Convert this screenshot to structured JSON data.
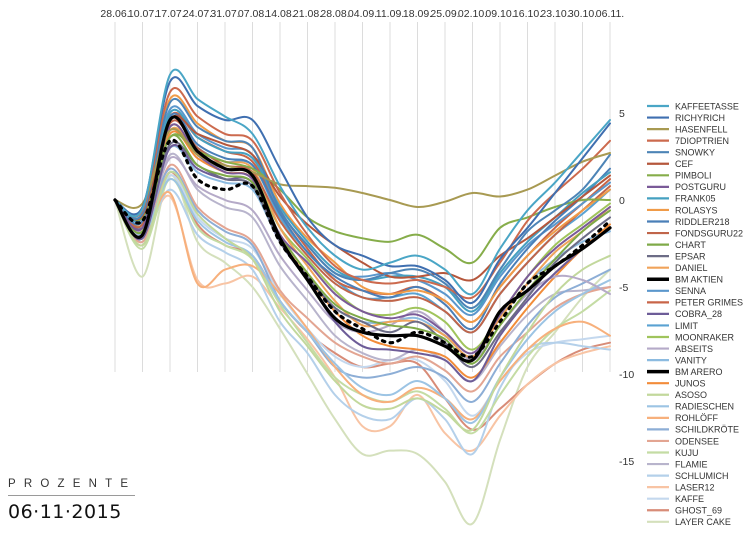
{
  "caption": {
    "title": "PROZENTE",
    "date": "06·11·2015"
  },
  "chart_data": {
    "type": "line",
    "title": "PROZENTE 06·11·2015",
    "xlabel": "",
    "ylabel": "Prozente",
    "ylim": [
      -18.5,
      8.5
    ],
    "yticks": [
      5,
      0,
      -5,
      -10,
      -15
    ],
    "ytick_labels": [
      "5",
      "0",
      "-5",
      "-10",
      "-15"
    ],
    "grid": "vertical",
    "legend_position": "right",
    "smooth": true,
    "x": [
      "28.06.",
      "10.07.",
      "17.07.",
      "24.07.",
      "31.07.",
      "07.08.",
      "14.08.",
      "21.08.",
      "28.08.",
      "04.09.",
      "11.09.",
      "18.09.",
      "25.09.",
      "02.10.",
      "09.10.",
      "16.10.",
      "23.10.",
      "30.10.",
      "06.11."
    ],
    "series": [
      {
        "name": "KAFFEETASSE",
        "color": "#4aa6c6",
        "width": 2,
        "dash": "",
        "values": [
          0,
          -0.5,
          7.2,
          5.8,
          4.8,
          3.8,
          0.8,
          -1.6,
          -3.2,
          -4.0,
          -3.6,
          -3.2,
          -4.0,
          -5.4,
          -2.8,
          -0.6,
          1.0,
          2.8,
          4.6
        ]
      },
      {
        "name": "RICHYRICH",
        "color": "#3f6fb0",
        "width": 2,
        "dash": "",
        "values": [
          0,
          -0.4,
          6.8,
          5.4,
          4.6,
          4.6,
          1.8,
          -1.0,
          -2.6,
          -3.2,
          -3.8,
          -3.8,
          -4.6,
          -5.9,
          -3.4,
          -1.6,
          0.4,
          2.4,
          4.4
        ]
      },
      {
        "name": "HASENFELL",
        "color": "#a89a52",
        "width": 2,
        "dash": "",
        "values": [
          0,
          -0.2,
          4.0,
          2.6,
          2.0,
          1.6,
          0.9,
          0.8,
          0.7,
          0.4,
          0.0,
          -0.4,
          -0.1,
          0.4,
          0.2,
          0.6,
          1.4,
          2.2,
          2.7
        ]
      },
      {
        "name": "7DIOPTRIEN",
        "color": "#cc6a4e",
        "width": 2,
        "dash": "",
        "values": [
          0,
          -0.6,
          6.2,
          4.8,
          3.8,
          3.4,
          0.4,
          -2.0,
          -3.8,
          -4.6,
          -4.8,
          -4.6,
          -5.0,
          -5.6,
          -3.6,
          -1.2,
          0.4,
          1.8,
          3.4
        ]
      },
      {
        "name": "SNOWKY",
        "color": "#4d84b6",
        "width": 2,
        "dash": "",
        "values": [
          0,
          -0.8,
          5.6,
          4.2,
          3.4,
          3.0,
          -0.6,
          -2.6,
          -4.2,
          -4.6,
          -4.2,
          -4.0,
          -4.8,
          -6.2,
          -4.0,
          -1.8,
          -0.6,
          0.6,
          2.6
        ]
      },
      {
        "name": "CEF",
        "color": "#b5573c",
        "width": 2,
        "dash": "",
        "values": [
          0,
          -0.9,
          4.6,
          3.8,
          3.2,
          2.6,
          0.2,
          -1.4,
          -2.6,
          -3.6,
          -4.4,
          -4.4,
          -4.2,
          -4.6,
          -3.2,
          -2.2,
          -1.0,
          0.2,
          1.4
        ]
      },
      {
        "name": "PIMBOLI",
        "color": "#86ad4a",
        "width": 2,
        "dash": "",
        "values": [
          0,
          -1.0,
          3.6,
          2.8,
          2.2,
          1.8,
          0.6,
          -1.0,
          -1.8,
          -2.2,
          -2.4,
          -2.0,
          -2.8,
          -3.6,
          -1.6,
          -1.0,
          -0.4,
          0.0,
          0.0
        ]
      },
      {
        "name": "POSTGURU",
        "color": "#7a5a98",
        "width": 2,
        "dash": "",
        "values": [
          0,
          -1.6,
          4.2,
          2.6,
          1.6,
          1.2,
          -2.0,
          -3.6,
          -5.4,
          -6.4,
          -6.8,
          -6.6,
          -7.6,
          -8.8,
          -6.6,
          -4.4,
          -2.8,
          -1.6,
          -0.4
        ]
      },
      {
        "name": "FRANK05",
        "color": "#45a0c0",
        "width": 2,
        "dash": "",
        "values": [
          0,
          -1.0,
          5.0,
          3.6,
          2.8,
          2.4,
          -0.4,
          -2.4,
          -4.0,
          -4.6,
          -4.4,
          -4.4,
          -5.0,
          -6.4,
          -4.2,
          -2.4,
          -1.0,
          0.4,
          1.6
        ]
      },
      {
        "name": "ROLASYS",
        "color": "#f09b48",
        "width": 2,
        "dash": "",
        "values": [
          0,
          -0.6,
          5.8,
          4.4,
          3.4,
          3.0,
          -0.2,
          -2.2,
          -3.6,
          -5.0,
          -5.4,
          -5.2,
          -5.8,
          -7.0,
          -5.0,
          -3.2,
          -1.8,
          -0.6,
          0.6
        ]
      },
      {
        "name": "RIDDLER218",
        "color": "#4a7fb8",
        "width": 2,
        "dash": "",
        "values": [
          0,
          -1.2,
          4.8,
          3.2,
          2.4,
          2.0,
          -0.8,
          -3.0,
          -4.4,
          -5.2,
          -5.6,
          -5.0,
          -6.0,
          -7.4,
          -4.8,
          -2.8,
          -1.2,
          0.2,
          1.8
        ]
      },
      {
        "name": "FONDSGURU22",
        "color": "#c0654a",
        "width": 2,
        "dash": "",
        "values": [
          0,
          -1.4,
          4.4,
          3.0,
          2.0,
          1.6,
          -1.2,
          -3.2,
          -4.8,
          -5.6,
          -5.8,
          -5.6,
          -6.4,
          -7.6,
          -5.4,
          -3.6,
          -2.0,
          -0.6,
          0.8
        ]
      },
      {
        "name": "CHART",
        "color": "#7faa48",
        "width": 2,
        "dash": "",
        "values": [
          0,
          -1.8,
          3.6,
          2.0,
          1.4,
          1.0,
          -2.0,
          -4.2,
          -6.0,
          -6.8,
          -7.2,
          -7.4,
          -8.0,
          -9.4,
          -7.2,
          -5.2,
          -3.4,
          -1.8,
          -0.6
        ]
      },
      {
        "name": "EPSAR",
        "color": "#6c6c86",
        "width": 2,
        "dash": "",
        "values": [
          0,
          -1.6,
          3.2,
          2.0,
          1.2,
          0.8,
          -2.4,
          -4.4,
          -6.2,
          -7.0,
          -7.6,
          -7.0,
          -8.2,
          -9.6,
          -7.6,
          -5.6,
          -3.6,
          -2.2,
          -1.0
        ]
      },
      {
        "name": "DANIEL",
        "color": "#f0a35a",
        "width": 2,
        "dash": "",
        "values": [
          0,
          -1.0,
          4.0,
          2.8,
          2.2,
          1.8,
          -1.6,
          -3.8,
          -5.8,
          -7.2,
          -7.0,
          -7.0,
          -7.8,
          -9.0,
          -6.8,
          -4.8,
          -3.0,
          -1.8,
          -0.4
        ]
      },
      {
        "name": "BM AKTIEN",
        "color": "#000000",
        "width": 3.2,
        "dash": "",
        "values": [
          0,
          -2.0,
          4.6,
          2.8,
          1.8,
          1.4,
          -2.2,
          -4.6,
          -6.8,
          -7.6,
          -7.8,
          -7.8,
          -8.4,
          -9.2,
          -6.4,
          -5.2,
          -3.8,
          -2.8,
          -1.6
        ]
      },
      {
        "name": "SENNA",
        "color": "#5b97cc",
        "width": 2,
        "dash": "",
        "values": [
          0,
          -0.8,
          5.2,
          3.8,
          3.0,
          2.6,
          -0.6,
          -2.6,
          -4.2,
          -4.4,
          -4.2,
          -4.6,
          -5.4,
          -6.6,
          -4.4,
          -2.6,
          -1.4,
          -0.2,
          1.0
        ]
      },
      {
        "name": "PETER GRIMES",
        "color": "#c86548",
        "width": 2,
        "dash": "",
        "values": [
          0,
          -1.2,
          4.8,
          3.6,
          2.8,
          2.2,
          -0.6,
          -2.8,
          -4.6,
          -5.2,
          -5.4,
          -5.0,
          -5.8,
          -7.0,
          -5.0,
          -3.2,
          -1.6,
          -0.2,
          1.2
        ]
      },
      {
        "name": "COBRA_28",
        "color": "#6d5c98",
        "width": 2,
        "dash": "",
        "values": [
          0,
          -2.2,
          3.0,
          1.8,
          1.2,
          1.0,
          -2.4,
          -4.6,
          -7.0,
          -8.4,
          -8.6,
          -8.8,
          -9.2,
          -10.4,
          -7.8,
          -5.8,
          -4.2,
          -2.8,
          -1.6
        ]
      },
      {
        "name": "LIMIT",
        "color": "#5aa2d2",
        "width": 2,
        "dash": "",
        "values": [
          0,
          -1.2,
          4.6,
          3.0,
          2.2,
          2.0,
          -1.0,
          -3.0,
          -4.6,
          -5.6,
          -5.6,
          -5.4,
          -6.4,
          -7.6,
          -5.4,
          -3.6,
          -2.0,
          -0.8,
          0.6
        ]
      },
      {
        "name": "MOONRAKER",
        "color": "#a0c45c",
        "width": 2,
        "dash": "",
        "values": [
          0,
          -1.4,
          4.2,
          2.6,
          1.8,
          1.4,
          -1.6,
          -3.4,
          -5.2,
          -6.4,
          -6.6,
          -6.2,
          -7.0,
          -8.6,
          -6.6,
          -4.4,
          -2.6,
          -1.4,
          -0.2
        ]
      },
      {
        "name": "ABSEITS",
        "color": "#b5aac8",
        "width": 2,
        "dash": "",
        "values": [
          0,
          -1.8,
          2.4,
          0.8,
          0.0,
          -0.6,
          -3.2,
          -5.2,
          -7.0,
          -7.6,
          -7.2,
          -6.4,
          -7.6,
          -9.2,
          -7.2,
          -5.4,
          -4.4,
          -4.6,
          -5.4
        ]
      },
      {
        "name": "VANITY",
        "color": "#8cbbe0",
        "width": 2,
        "dash": "",
        "values": [
          0,
          -1.6,
          3.0,
          1.6,
          1.0,
          0.6,
          -2.4,
          -4.4,
          -6.2,
          -7.0,
          -7.0,
          -6.8,
          -7.8,
          -9.0,
          -6.8,
          -4.8,
          -3.4,
          -2.4,
          -1.8
        ]
      },
      {
        "name": "BM ARERO",
        "color": "#000000",
        "width": 2.6,
        "dash": "2.5 5.5",
        "values": [
          0,
          -1.2,
          3.4,
          1.2,
          0.6,
          0.8,
          -2.4,
          -4.4,
          -6.4,
          -7.4,
          -8.2,
          -7.6,
          -8.2,
          -9.0,
          -7.0,
          -4.8,
          -3.8,
          -2.6,
          -1.2
        ]
      },
      {
        "name": "JUNOS",
        "color": "#f28c3a",
        "width": 2,
        "dash": "",
        "values": [
          0,
          -1.4,
          3.8,
          2.4,
          1.6,
          1.2,
          -2.2,
          -4.4,
          -6.4,
          -7.8,
          -8.4,
          -8.6,
          -9.0,
          -10.2,
          -8.2,
          -6.2,
          -4.4,
          -2.8,
          -1.4
        ]
      },
      {
        "name": "ASOSO",
        "color": "#c2d89c",
        "width": 2,
        "dash": "",
        "values": [
          0,
          -2.6,
          1.6,
          -0.8,
          -2.2,
          -3.4,
          -6.4,
          -8.4,
          -10.4,
          -11.8,
          -12.0,
          -11.4,
          -12.2,
          -13.2,
          -10.2,
          -7.6,
          -5.4,
          -4.0,
          -3.2
        ]
      },
      {
        "name": "RADIESCHEN",
        "color": "#9cc4e4",
        "width": 2,
        "dash": "",
        "values": [
          0,
          -2.0,
          1.2,
          -1.2,
          -2.4,
          -3.2,
          -5.8,
          -7.6,
          -9.4,
          -10.8,
          -11.2,
          -10.4,
          -11.4,
          -12.8,
          -10.2,
          -8.0,
          -6.4,
          -5.4,
          -4.6
        ]
      },
      {
        "name": "ROHLÖFF",
        "color": "#f7b07c",
        "width": 2,
        "dash": "",
        "values": [
          0,
          -1.8,
          0.4,
          -4.8,
          -4.0,
          -3.8,
          -5.4,
          -7.4,
          -9.6,
          -11.2,
          -11.6,
          -10.8,
          -11.4,
          -12.6,
          -10.4,
          -8.6,
          -7.4,
          -7.0,
          -7.8
        ]
      },
      {
        "name": "SCHILDKRÖTE",
        "color": "#8daed6",
        "width": 2,
        "dash": "",
        "values": [
          0,
          -1.6,
          1.8,
          -0.6,
          -1.8,
          -2.6,
          -5.8,
          -7.6,
          -9.6,
          -10.2,
          -10.0,
          -9.6,
          -10.2,
          -11.6,
          -9.4,
          -7.2,
          -5.6,
          -4.8,
          -4.0
        ]
      },
      {
        "name": "ODENSEE",
        "color": "#e3a592",
        "width": 2,
        "dash": "",
        "values": [
          0,
          -2.4,
          2.0,
          -0.4,
          -1.6,
          -2.4,
          -5.2,
          -6.8,
          -8.2,
          -9.0,
          -9.4,
          -9.0,
          -9.8,
          -11.0,
          -9.0,
          -7.6,
          -6.2,
          -5.4,
          -5.0
        ]
      },
      {
        "name": "KUJU",
        "color": "#c4dca4",
        "width": 2,
        "dash": "",
        "values": [
          0,
          -2.8,
          1.2,
          -1.6,
          -2.6,
          -3.4,
          -6.0,
          -8.2,
          -10.2,
          -11.2,
          -11.6,
          -11.0,
          -12.0,
          -13.4,
          -11.2,
          -9.0,
          -7.4,
          -6.4,
          -5.2
        ]
      },
      {
        "name": "FLAMIE",
        "color": "#b8b4cc",
        "width": 2,
        "dash": "",
        "values": [
          0,
          -2.0,
          2.6,
          0.6,
          -0.4,
          -1.0,
          -3.8,
          -5.8,
          -7.8,
          -8.8,
          -9.2,
          -8.6,
          -9.2,
          -10.4,
          -8.4,
          -6.6,
          -5.4,
          -5.2,
          -5.0
        ]
      },
      {
        "name": "SCHLUMICH",
        "color": "#b4d0ea",
        "width": 2,
        "dash": "",
        "values": [
          0,
          -2.2,
          0.6,
          -2.0,
          -3.0,
          -4.0,
          -7.0,
          -8.8,
          -11.2,
          -12.4,
          -12.6,
          -11.4,
          -12.6,
          -14.6,
          -10.8,
          -8.6,
          -8.2,
          -8.4,
          -8.6
        ]
      },
      {
        "name": "LASER12",
        "color": "#f8c4a4",
        "width": 2,
        "dash": "",
        "values": [
          0,
          -2.0,
          0.2,
          -4.6,
          -4.8,
          -4.4,
          -6.2,
          -8.0,
          -10.2,
          -13.0,
          -13.0,
          -11.2,
          -13.4,
          -14.4,
          -12.4,
          -10.6,
          -9.4,
          -8.8,
          -8.4
        ]
      },
      {
        "name": "KAFFE",
        "color": "#c4d8ee",
        "width": 2,
        "dash": "",
        "values": [
          0,
          -2.4,
          1.4,
          -1.0,
          -2.2,
          -2.8,
          -5.4,
          -7.4,
          -9.0,
          -9.6,
          -9.2,
          -9.2,
          -10.4,
          -12.4,
          -10.4,
          -8.8,
          -8.2,
          -8.0,
          -7.8
        ]
      },
      {
        "name": "GHOST_69",
        "color": "#d88c78",
        "width": 2,
        "dash": "",
        "values": [
          0,
          -2.6,
          1.6,
          -1.4,
          -2.6,
          -3.2,
          -5.8,
          -7.6,
          -8.8,
          -9.6,
          -9.4,
          -9.4,
          -11.4,
          -13.2,
          -12.0,
          -10.6,
          -9.4,
          -8.6,
          -8.2
        ]
      },
      {
        "name": "LAYER CAKE",
        "color": "#d4e0bc",
        "width": 2,
        "dash": "",
        "values": [
          0,
          -4.4,
          1.4,
          -2.4,
          -3.6,
          -5.0,
          -7.4,
          -10.0,
          -12.6,
          -14.6,
          -14.4,
          -14.6,
          -16.2,
          -18.6,
          -13.8,
          -9.6,
          -7.6,
          -5.6,
          -4.0
        ]
      }
    ]
  }
}
